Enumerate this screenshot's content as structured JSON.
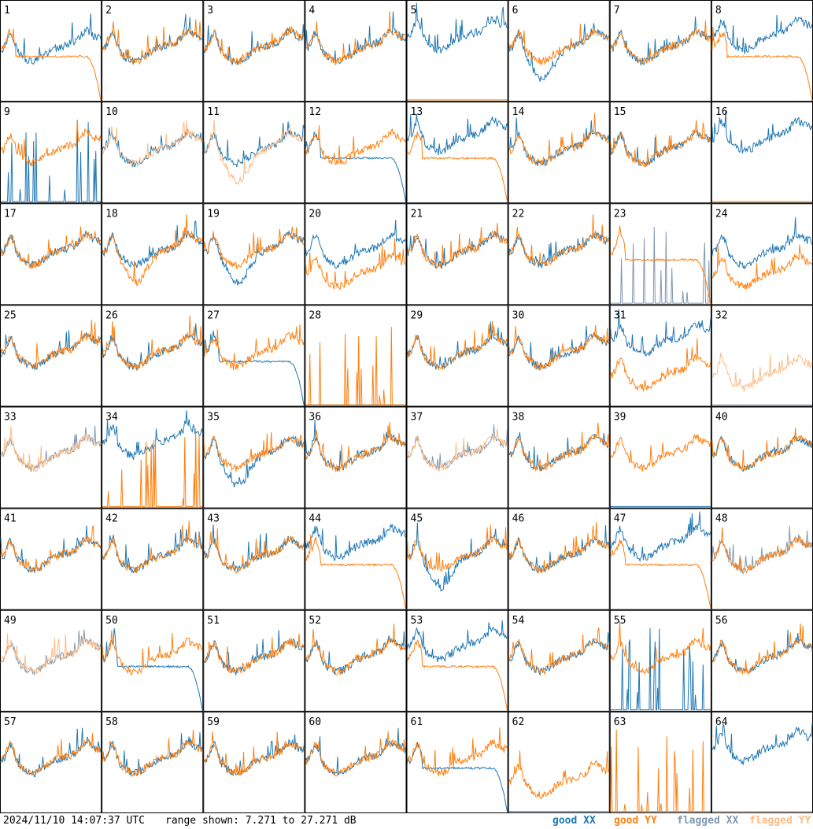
{
  "footer": {
    "timestamp": "2024/11/10 14:07:37 UTC",
    "range_text": "range shown: 7.271 to 27.271 dB",
    "legend": {
      "good_xx": "good XX",
      "good_yy": "good YY",
      "flagged_xx": "flagged XX",
      "flagged_yy": "flagged YY"
    }
  },
  "colors": {
    "good_xx": "#1f77b4",
    "good_yy": "#ff7f0e",
    "flagged_xx": "#7f98b0",
    "flagged_yy": "#fdbb84",
    "grid": "#000000"
  },
  "chart_data": {
    "type": "line",
    "layout": "8x8 small multiples",
    "ylim": [
      7.271,
      27.271
    ],
    "yunit": "dB",
    "panels": [
      {
        "id": "1",
        "xx": "good",
        "yy": "good",
        "xx_shape": "normal",
        "yy_shape": "rolloff"
      },
      {
        "id": "2",
        "xx": "good",
        "yy": "good",
        "xx_shape": "normal",
        "yy_shape": "normal"
      },
      {
        "id": "3",
        "xx": "good",
        "yy": "good",
        "xx_shape": "normal",
        "yy_shape": "normal"
      },
      {
        "id": "4",
        "xx": "good",
        "yy": "good",
        "xx_shape": "normal",
        "yy_shape": "normal"
      },
      {
        "id": "5",
        "xx": "good",
        "yy": "good",
        "xx_shape": "high",
        "yy_shape": "dead"
      },
      {
        "id": "6",
        "xx": "good",
        "yy": "good",
        "xx_shape": "dip",
        "yy_shape": "normal"
      },
      {
        "id": "7",
        "xx": "good",
        "yy": "good",
        "xx_shape": "normal",
        "yy_shape": "normal"
      },
      {
        "id": "8",
        "xx": "good",
        "yy": "good",
        "xx_shape": "high",
        "yy_shape": "rolloff"
      },
      {
        "id": "9",
        "xx": "good",
        "yy": "good",
        "xx_shape": "spiky",
        "yy_shape": "normal"
      },
      {
        "id": "10",
        "xx": "good",
        "yy": "flagged",
        "xx_shape": "normal",
        "yy_shape": "normal"
      },
      {
        "id": "11",
        "xx": "good",
        "yy": "flagged",
        "xx_shape": "normal",
        "yy_shape": "dip"
      },
      {
        "id": "12",
        "xx": "good",
        "yy": "good",
        "xx_shape": "rolloff",
        "yy_shape": "normal"
      },
      {
        "id": "13",
        "xx": "good",
        "yy": "good",
        "xx_shape": "high",
        "yy_shape": "rolloff"
      },
      {
        "id": "14",
        "xx": "good",
        "yy": "good",
        "xx_shape": "normal",
        "yy_shape": "normal"
      },
      {
        "id": "15",
        "xx": "good",
        "yy": "good",
        "xx_shape": "normal",
        "yy_shape": "normal"
      },
      {
        "id": "16",
        "xx": "good",
        "yy": "good",
        "xx_shape": "high",
        "yy_shape": "dead"
      },
      {
        "id": "17",
        "xx": "good",
        "yy": "good",
        "xx_shape": "normal",
        "yy_shape": "normal"
      },
      {
        "id": "18",
        "xx": "good",
        "yy": "good",
        "xx_shape": "normal",
        "yy_shape": "dip"
      },
      {
        "id": "19",
        "xx": "good",
        "yy": "good",
        "xx_shape": "dip",
        "yy_shape": "normal"
      },
      {
        "id": "20",
        "xx": "good",
        "yy": "good",
        "xx_shape": "normal",
        "yy_shape": "low"
      },
      {
        "id": "21",
        "xx": "good",
        "yy": "good",
        "xx_shape": "normal",
        "yy_shape": "normal"
      },
      {
        "id": "22",
        "xx": "good",
        "yy": "good",
        "xx_shape": "normal",
        "yy_shape": "normal"
      },
      {
        "id": "23",
        "xx": "flagged",
        "yy": "good",
        "xx_shape": "spiky",
        "yy_shape": "rolloff"
      },
      {
        "id": "24",
        "xx": "good",
        "yy": "good",
        "xx_shape": "normal",
        "yy_shape": "low"
      },
      {
        "id": "25",
        "xx": "good",
        "yy": "good",
        "xx_shape": "normal",
        "yy_shape": "normal"
      },
      {
        "id": "26",
        "xx": "good",
        "yy": "good",
        "xx_shape": "normal",
        "yy_shape": "normal"
      },
      {
        "id": "27",
        "xx": "good",
        "yy": "good",
        "xx_shape": "rolloff",
        "yy_shape": "normal"
      },
      {
        "id": "28",
        "xx": "good",
        "yy": "good",
        "xx_shape": "dead",
        "yy_shape": "spiky"
      },
      {
        "id": "29",
        "xx": "good",
        "yy": "good",
        "xx_shape": "normal",
        "yy_shape": "normal"
      },
      {
        "id": "30",
        "xx": "good",
        "yy": "good",
        "xx_shape": "normal",
        "yy_shape": "normal"
      },
      {
        "id": "31",
        "xx": "good",
        "yy": "good",
        "xx_shape": "high",
        "yy_shape": "low"
      },
      {
        "id": "32",
        "xx": "flagged",
        "yy": "flagged",
        "xx_shape": "dead",
        "yy_shape": "low"
      },
      {
        "id": "33",
        "xx": "flagged",
        "yy": "flagged",
        "xx_shape": "normal",
        "yy_shape": "normal"
      },
      {
        "id": "34",
        "xx": "good",
        "yy": "good",
        "xx_shape": "high",
        "yy_shape": "spiky"
      },
      {
        "id": "35",
        "xx": "good",
        "yy": "good",
        "xx_shape": "dip",
        "yy_shape": "normal"
      },
      {
        "id": "36",
        "xx": "good",
        "yy": "good",
        "xx_shape": "normal",
        "yy_shape": "normal"
      },
      {
        "id": "37",
        "xx": "flagged",
        "yy": "flagged",
        "xx_shape": "normal",
        "yy_shape": "normal"
      },
      {
        "id": "38",
        "xx": "good",
        "yy": "good",
        "xx_shape": "normal",
        "yy_shape": "normal"
      },
      {
        "id": "39",
        "xx": "good",
        "yy": "good",
        "xx_shape": "dead",
        "yy_shape": "normal"
      },
      {
        "id": "40",
        "xx": "good",
        "yy": "good",
        "xx_shape": "normal",
        "yy_shape": "normal"
      },
      {
        "id": "41",
        "xx": "good",
        "yy": "good",
        "xx_shape": "normal",
        "yy_shape": "normal"
      },
      {
        "id": "42",
        "xx": "good",
        "yy": "good",
        "xx_shape": "normal",
        "yy_shape": "normal"
      },
      {
        "id": "43",
        "xx": "good",
        "yy": "good",
        "xx_shape": "normal",
        "yy_shape": "normal"
      },
      {
        "id": "44",
        "xx": "good",
        "yy": "good",
        "xx_shape": "high",
        "yy_shape": "rolloff"
      },
      {
        "id": "45",
        "xx": "good",
        "yy": "good",
        "xx_shape": "dip",
        "yy_shape": "normal"
      },
      {
        "id": "46",
        "xx": "good",
        "yy": "good",
        "xx_shape": "normal",
        "yy_shape": "normal"
      },
      {
        "id": "47",
        "xx": "good",
        "yy": "good",
        "xx_shape": "high",
        "yy_shape": "rolloff"
      },
      {
        "id": "48",
        "xx": "flagged",
        "yy": "good",
        "xx_shape": "normal",
        "yy_shape": "normal"
      },
      {
        "id": "49",
        "xx": "flagged",
        "yy": "flagged",
        "xx_shape": "normal",
        "yy_shape": "normal"
      },
      {
        "id": "50",
        "xx": "good",
        "yy": "good",
        "xx_shape": "rolloff",
        "yy_shape": "normal"
      },
      {
        "id": "51",
        "xx": "good",
        "yy": "good",
        "xx_shape": "normal",
        "yy_shape": "normal"
      },
      {
        "id": "52",
        "xx": "good",
        "yy": "good",
        "xx_shape": "normal",
        "yy_shape": "normal"
      },
      {
        "id": "53",
        "xx": "good",
        "yy": "good",
        "xx_shape": "high",
        "yy_shape": "rolloff"
      },
      {
        "id": "54",
        "xx": "good",
        "yy": "good",
        "xx_shape": "normal",
        "yy_shape": "normal"
      },
      {
        "id": "55",
        "xx": "good",
        "yy": "good",
        "xx_shape": "spiky",
        "yy_shape": "normal"
      },
      {
        "id": "56",
        "xx": "good",
        "yy": "good",
        "xx_shape": "normal",
        "yy_shape": "normal"
      },
      {
        "id": "57",
        "xx": "good",
        "yy": "good",
        "xx_shape": "normal",
        "yy_shape": "normal"
      },
      {
        "id": "58",
        "xx": "good",
        "yy": "good",
        "xx_shape": "normal",
        "yy_shape": "normal"
      },
      {
        "id": "59",
        "xx": "good",
        "yy": "good",
        "xx_shape": "normal",
        "yy_shape": "normal"
      },
      {
        "id": "60",
        "xx": "good",
        "yy": "good",
        "xx_shape": "normal",
        "yy_shape": "normal"
      },
      {
        "id": "61",
        "xx": "good",
        "yy": "good",
        "xx_shape": "rolloff",
        "yy_shape": "normal"
      },
      {
        "id": "62",
        "xx": "good",
        "yy": "good",
        "xx_shape": "dead",
        "yy_shape": "low"
      },
      {
        "id": "63",
        "xx": "good",
        "yy": "good",
        "xx_shape": "dead",
        "yy_shape": "spiky"
      },
      {
        "id": "64",
        "xx": "good",
        "yy": "good",
        "xx_shape": "high",
        "yy_shape": "dead"
      }
    ]
  }
}
